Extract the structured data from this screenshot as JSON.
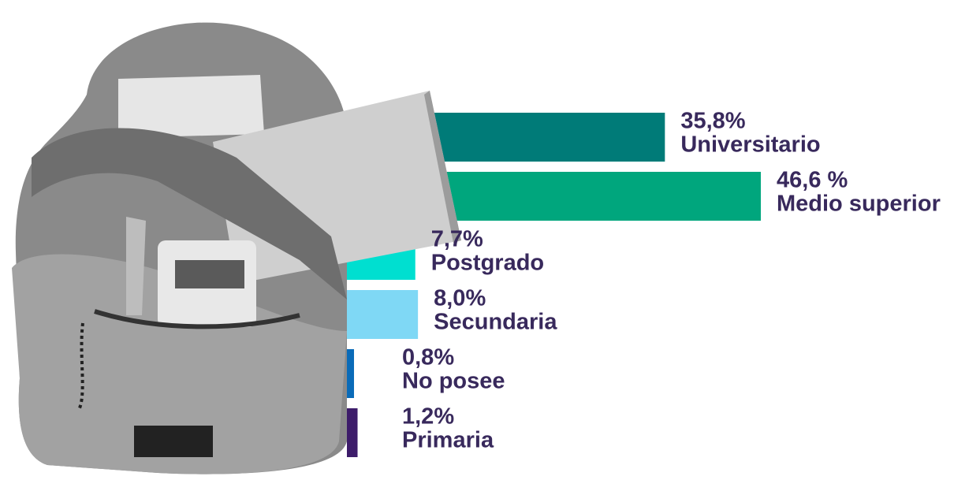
{
  "chart_data": {
    "type": "hbar",
    "categories": [
      "Universitario",
      "Medio superior",
      "Postgrado",
      "Secundaria",
      "No posee",
      "Primaria"
    ],
    "values": [
      35.8,
      46.6,
      7.7,
      8.0,
      0.8,
      1.2
    ],
    "value_labels": [
      "35,8%",
      "46,6 %",
      "7,7%",
      "8,0%",
      "0,8%",
      "1,2%"
    ],
    "colors": [
      "#007b78",
      "#00a67d",
      "#00dfd0",
      "#7fd8f5",
      "#0a6bb8",
      "#3d1c6a"
    ]
  }
}
